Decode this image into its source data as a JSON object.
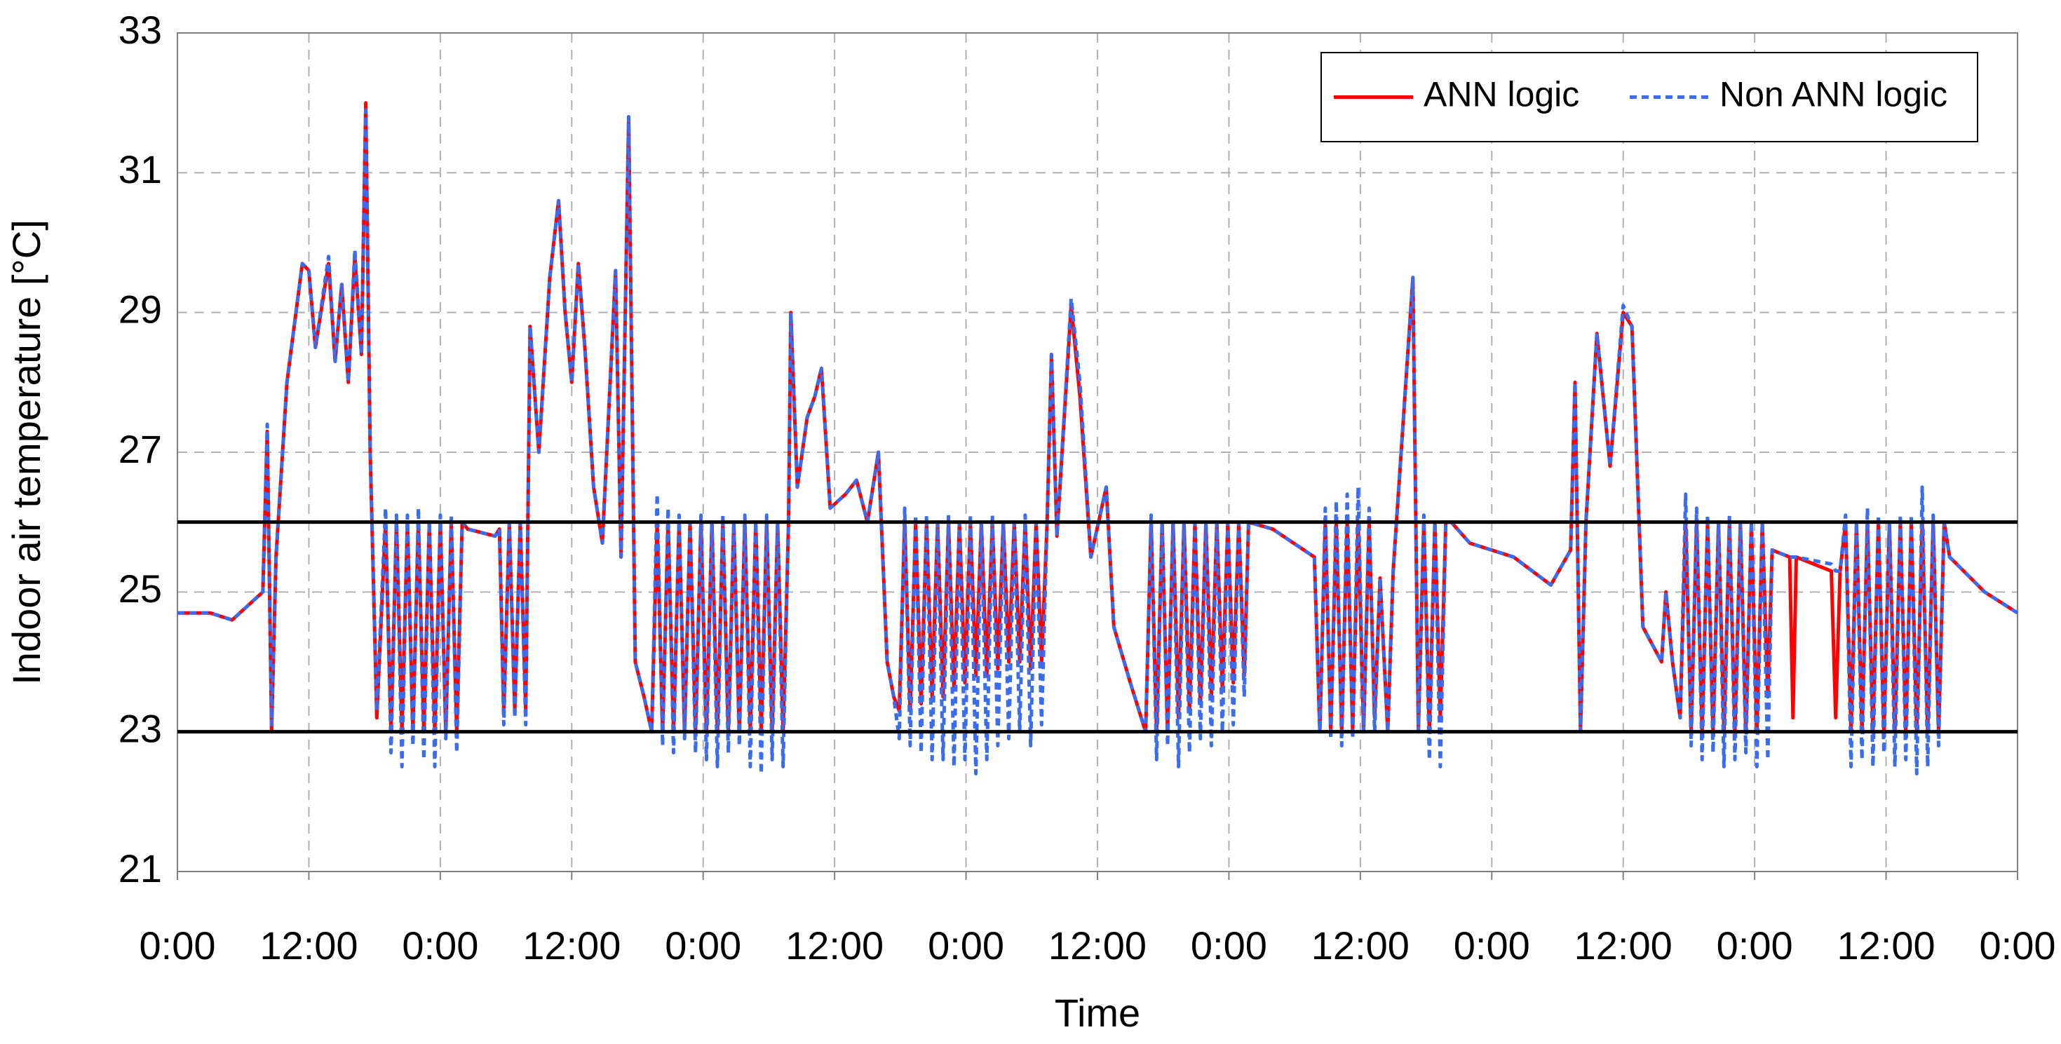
{
  "chart_data": {
    "type": "line",
    "x_label": "Time",
    "y_label": "Indoor air temperature [°C]",
    "xlim": [
      0,
      168
    ],
    "xticks": [
      {
        "value": 0,
        "label": "0:00"
      },
      {
        "value": 12,
        "label": "12:00"
      },
      {
        "value": 24,
        "label": "0:00"
      },
      {
        "value": 36,
        "label": "12:00"
      },
      {
        "value": 48,
        "label": "0:00"
      },
      {
        "value": 60,
        "label": "12:00"
      },
      {
        "value": 72,
        "label": "0:00"
      },
      {
        "value": 84,
        "label": "12:00"
      },
      {
        "value": 96,
        "label": "0:00"
      },
      {
        "value": 108,
        "label": "12:00"
      },
      {
        "value": 120,
        "label": "0:00"
      },
      {
        "value": 132,
        "label": "12:00"
      },
      {
        "value": 144,
        "label": "0:00"
      },
      {
        "value": 156,
        "label": "12:00"
      },
      {
        "value": 168,
        "label": "0:00"
      }
    ],
    "ylim": [
      21,
      33
    ],
    "yticks": [
      21,
      23,
      25,
      27,
      29,
      31,
      33
    ],
    "grid": true,
    "legend": "upper right",
    "reference_lines": [
      23,
      26
    ],
    "reference_color": "#000000",
    "x": [
      0,
      3,
      5,
      7.8,
      8.2,
      8.6,
      9,
      10,
      11.4,
      12,
      12.6,
      13.8,
      14.4,
      15,
      15.6,
      16.2,
      16.8,
      17.2,
      17.6,
      18.2,
      19,
      19.5,
      20,
      20.5,
      21,
      21.5,
      22,
      22.5,
      23,
      23.5,
      24,
      24.5,
      25,
      25.5,
      26,
      26.5,
      29,
      29.4,
      29.8,
      30.3,
      30.8,
      31.3,
      31.8,
      32.2,
      33,
      34,
      34.8,
      35.4,
      36,
      36.6,
      37.2,
      38,
      38.8,
      40,
      40.5,
      41.2,
      41.8,
      42.6,
      43.3,
      43.8,
      44.3,
      44.8,
      45.3,
      45.8,
      46.3,
      46.8,
      47.3,
      47.8,
      48.3,
      48.8,
      49.3,
      49.8,
      50.3,
      50.8,
      51.3,
      51.8,
      52.3,
      52.8,
      53.3,
      53.8,
      54.3,
      54.8,
      55.3,
      55.8,
      56,
      56.6,
      57.5,
      58.2,
      58.8,
      59.6,
      61,
      62,
      63,
      64,
      64.8,
      65.4,
      65.9,
      66.4,
      66.9,
      67.4,
      67.9,
      68.4,
      68.9,
      69.4,
      69.9,
      70.4,
      70.9,
      71.4,
      71.9,
      72.4,
      72.9,
      73.4,
      73.9,
      74.4,
      74.9,
      75.4,
      75.9,
      76.4,
      76.9,
      77.4,
      77.9,
      78.4,
      78.9,
      79.4,
      79.8,
      80.3,
      81.6,
      82.4,
      83.4,
      84.8,
      85.5,
      87,
      88.4,
      88.9,
      89.4,
      89.9,
      90.4,
      90.9,
      91.4,
      91.9,
      92.4,
      92.9,
      93.4,
      93.9,
      94.4,
      94.9,
      95.4,
      95.9,
      96.4,
      96.9,
      97.4,
      97.8,
      100,
      103.8,
      104.3,
      104.8,
      105.3,
      105.8,
      106.3,
      106.8,
      107.3,
      107.8,
      108.3,
      108.8,
      109.3,
      109.8,
      110.5,
      111,
      112.8,
      113.3,
      113.8,
      114.3,
      114.8,
      115.3,
      115.8,
      116.3,
      118,
      122,
      125.4,
      127.2,
      127.6,
      128.1,
      128.6,
      129.6,
      130.8,
      132,
      132.8,
      133.8,
      135.5,
      135.9,
      136.5,
      137.2,
      137.7,
      138.2,
      138.7,
      139.2,
      139.7,
      140.2,
      140.7,
      141.2,
      141.7,
      142.2,
      142.7,
      143.2,
      143.7,
      144.2,
      144.7,
      145.2,
      145.6,
      147.2,
      147.5,
      147.8,
      151,
      151.4,
      151.8,
      152.3,
      152.8,
      153.3,
      153.8,
      154.3,
      154.8,
      155.3,
      155.8,
      156.3,
      156.8,
      157.3,
      157.8,
      158.3,
      158.8,
      159.3,
      159.8,
      160.3,
      160.8,
      161.3,
      161.8,
      165,
      168
    ],
    "series": [
      {
        "name": "ANN logic",
        "color": "#ff0000",
        "dashed": false,
        "values": [
          24.7,
          24.7,
          24.6,
          25.0,
          27.3,
          23.0,
          25.5,
          28,
          29.7,
          29.6,
          28.5,
          29.7,
          28.3,
          29.4,
          28,
          29.8,
          28.4,
          32,
          27,
          23.2,
          26,
          23,
          26,
          23,
          26,
          23,
          26,
          23,
          26,
          23,
          26,
          23,
          26,
          23,
          26,
          25.9,
          25.8,
          25.9,
          23.3,
          26,
          23.3,
          26,
          23.3,
          28.8,
          27,
          29.5,
          30.6,
          29,
          28,
          29.7,
          28.5,
          26.5,
          25.7,
          29.6,
          25.5,
          31.8,
          24,
          23.5,
          23,
          26,
          23,
          26,
          23,
          26,
          23,
          26,
          23,
          26,
          23,
          26,
          23,
          26,
          23,
          26,
          23,
          26,
          23,
          26,
          23,
          26,
          23,
          26,
          23,
          26,
          29,
          26.5,
          27.5,
          27.8,
          28.2,
          26.2,
          26.4,
          26.6,
          26,
          27,
          24,
          23.5,
          23.3,
          26,
          23.3,
          26,
          23.4,
          26,
          23.5,
          26,
          23.5,
          26,
          23.6,
          26,
          23.7,
          26,
          23.8,
          26,
          23.8,
          26,
          23.9,
          26,
          24,
          26,
          24,
          26,
          23.9,
          26,
          24,
          26,
          28.4,
          25.8,
          29.1,
          27.8,
          25.5,
          26.5,
          24.5,
          23.7,
          23,
          26,
          23,
          26,
          23,
          26,
          23.2,
          26,
          23.3,
          26,
          23.4,
          26,
          23.5,
          26,
          23.6,
          26,
          23.7,
          26,
          23.8,
          26,
          25.9,
          25.5,
          23,
          26,
          23,
          26,
          23,
          26,
          23,
          26,
          23,
          26,
          23.2,
          25.2,
          23,
          25.3,
          29.5,
          23,
          26,
          23,
          26,
          23.2,
          26,
          26,
          25.7,
          25.5,
          25.1,
          25.6,
          28,
          23,
          26,
          28.7,
          26.8,
          29,
          28.8,
          24.5,
          24,
          25,
          24,
          23.2,
          26,
          23,
          26,
          23,
          26,
          23,
          26,
          23,
          26,
          23,
          26,
          23,
          26,
          23,
          26,
          23.5,
          25.6,
          25.5,
          23.2,
          25.5,
          25.3,
          23.2,
          25.3,
          26,
          23,
          26,
          23,
          26,
          23,
          26,
          23,
          26,
          23,
          26,
          23,
          26,
          23,
          26,
          23,
          26,
          23,
          26,
          25.5,
          25,
          24.7
        ]
      },
      {
        "name": "Non ANN logic",
        "color": "#3a6cf0",
        "dashed": true,
        "values": [
          24.7,
          24.7,
          24.6,
          25.0,
          27.4,
          23.1,
          25.5,
          28,
          29.7,
          29.6,
          28.5,
          29.8,
          28.3,
          29.4,
          28,
          29.9,
          28.4,
          31.9,
          27,
          23.3,
          26.2,
          22.7,
          26.1,
          22.5,
          26.1,
          22.8,
          26.2,
          22.6,
          26,
          22.5,
          26.1,
          22.9,
          26.1,
          22.7,
          26,
          25.9,
          25.8,
          25.9,
          23.1,
          26,
          23.2,
          26,
          23.1,
          28.8,
          27,
          29.5,
          30.6,
          29,
          28,
          29.7,
          28.5,
          26.5,
          25.7,
          29.6,
          25.5,
          31.8,
          24,
          23.5,
          23,
          26.4,
          22.8,
          26.2,
          22.7,
          26.1,
          22.9,
          26,
          22.7,
          26.1,
          22.6,
          26,
          22.5,
          26.1,
          22.7,
          26,
          22.8,
          26.1,
          22.5,
          26,
          22.4,
          26.1,
          22.6,
          26,
          22.5,
          26.1,
          29,
          26.5,
          27.5,
          27.8,
          28.2,
          26.2,
          26.4,
          26.6,
          26,
          27,
          24,
          23.5,
          22.9,
          26.2,
          22.8,
          26.1,
          22.7,
          26.1,
          22.6,
          26,
          22.6,
          26.1,
          22.5,
          26,
          22.6,
          26.1,
          22.4,
          26,
          22.6,
          26.1,
          22.8,
          26,
          22.9,
          26,
          23,
          26.1,
          22.8,
          26,
          23.1,
          26,
          28.4,
          25.8,
          29.2,
          28,
          25.5,
          26.5,
          24.5,
          23.7,
          23,
          26.1,
          22.6,
          26,
          22.8,
          26,
          22.5,
          26,
          22.7,
          26,
          22.9,
          26,
          22.8,
          26,
          23,
          26,
          23.1,
          26,
          23.5,
          26,
          25.9,
          25.5,
          23,
          26.2,
          22.9,
          26.3,
          22.8,
          26.4,
          22.9,
          26.5,
          23,
          26.2,
          23,
          25.2,
          23,
          25.3,
          29.5,
          23,
          26.1,
          22.6,
          26,
          22.5,
          26,
          26,
          25.7,
          25.5,
          25.1,
          25.6,
          28,
          23,
          26,
          28.7,
          26.8,
          29.1,
          28.8,
          24.5,
          24,
          25,
          24,
          23.2,
          26.4,
          22.8,
          26.2,
          22.6,
          26.1,
          22.7,
          26,
          22.5,
          26.1,
          22.6,
          26,
          22.7,
          26,
          22.5,
          26,
          22.6,
          25.6,
          25.5,
          25.5,
          25.5,
          25.4,
          25.3,
          25.3,
          26.1,
          22.5,
          26,
          22.6,
          26.2,
          22.5,
          26.1,
          22.7,
          26,
          22.5,
          26.1,
          22.6,
          26.1,
          22.4,
          26.5,
          22.5,
          26.1,
          22.8,
          26,
          25.5,
          25,
          24.7
        ]
      }
    ]
  }
}
